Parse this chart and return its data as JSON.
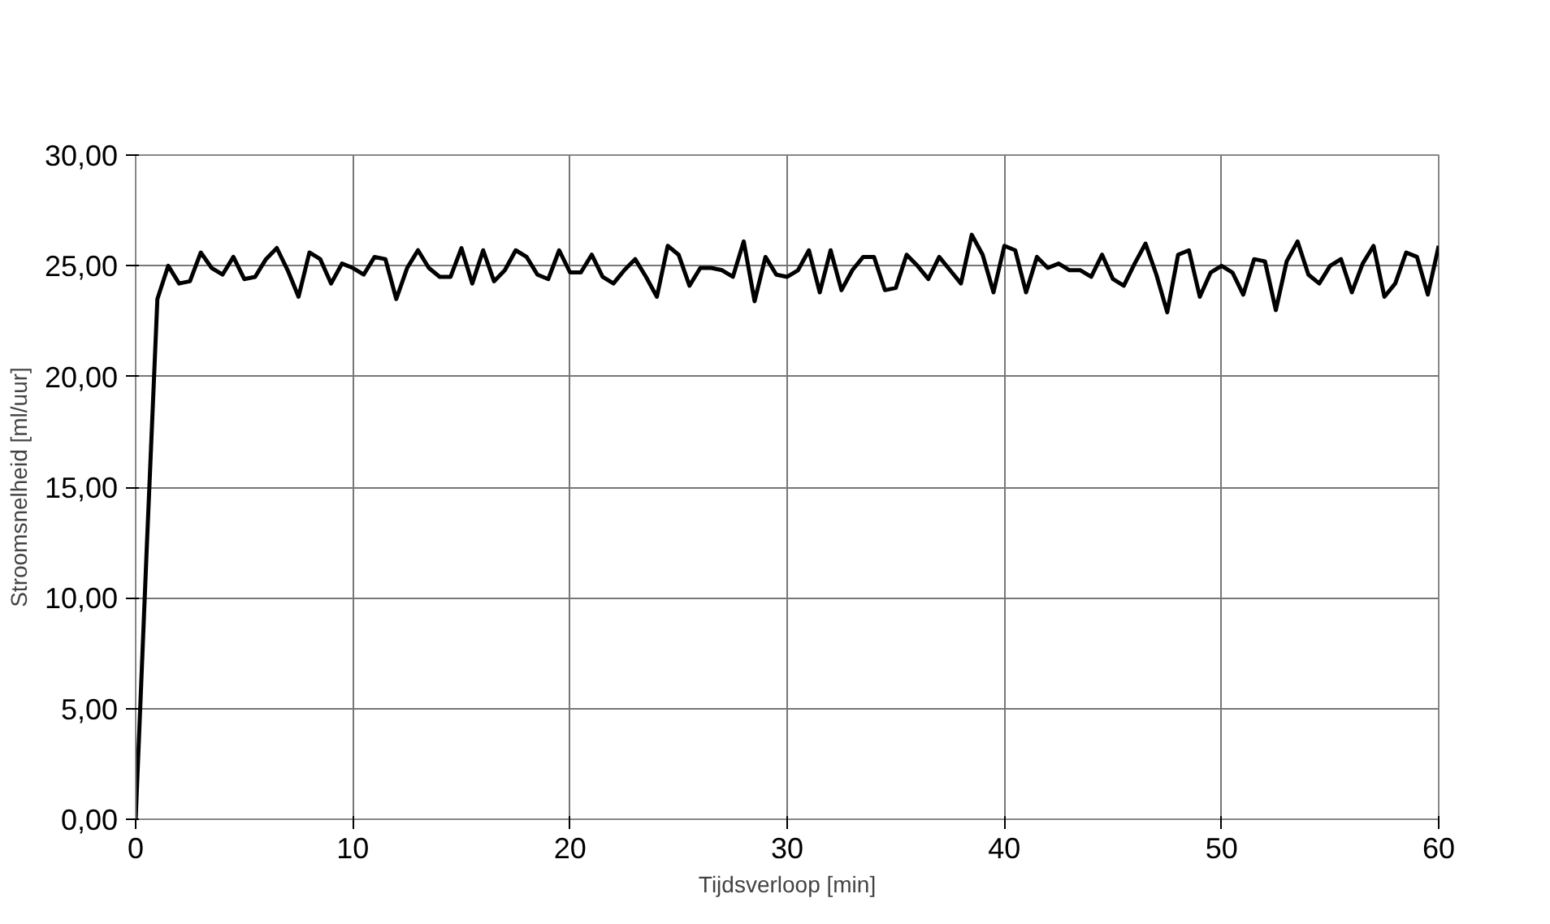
{
  "chart_data": {
    "type": "line",
    "xlabel": "Tijdsverloop [min]",
    "ylabel": "Stroomsnelheid [ml/uur]",
    "xlim": [
      0,
      60
    ],
    "ylim": [
      0,
      30
    ],
    "xticks": [
      0,
      10,
      20,
      30,
      40,
      50,
      60
    ],
    "yticks": [
      {
        "value": 0,
        "label": "0,00"
      },
      {
        "value": 5,
        "label": "5,00"
      },
      {
        "value": 10,
        "label": "10,00"
      },
      {
        "value": 15,
        "label": "15,00"
      },
      {
        "value": 20,
        "label": "20,00"
      },
      {
        "value": 25,
        "label": "25,00"
      },
      {
        "value": 30,
        "label": "30,00"
      }
    ],
    "grid": true,
    "marker": "none",
    "line_style": "solid",
    "x": [
      0,
      0.5,
      1,
      1.5,
      2,
      2.5,
      3,
      3.5,
      4,
      4.5,
      5,
      5.5,
      6,
      6.5,
      7,
      7.5,
      8,
      8.5,
      9,
      9.5,
      10,
      10.5,
      11,
      11.5,
      12,
      12.5,
      13,
      13.5,
      14,
      14.5,
      15,
      15.5,
      16,
      16.5,
      17,
      17.5,
      18,
      18.5,
      19,
      19.5,
      20,
      20.5,
      21,
      21.5,
      22,
      22.5,
      23,
      23.5,
      24,
      24.5,
      25,
      25.5,
      26,
      26.5,
      27,
      27.5,
      28,
      28.5,
      29,
      29.5,
      30,
      30.5,
      31,
      31.5,
      32,
      32.5,
      33,
      33.5,
      34,
      34.5,
      35,
      35.5,
      36,
      36.5,
      37,
      37.5,
      38,
      38.5,
      39,
      39.5,
      40,
      40.5,
      41,
      41.5,
      42,
      42.5,
      43,
      43.5,
      44,
      44.5,
      45,
      45.5,
      46,
      46.5,
      47,
      47.5,
      48,
      48.5,
      49,
      49.5,
      50,
      50.5,
      51,
      51.5,
      52,
      52.5,
      53,
      53.5,
      54,
      54.5,
      55,
      55.5,
      56,
      56.5,
      57,
      57.5,
      58,
      58.5,
      59,
      59.5,
      60
    ],
    "series": [
      {
        "color": "#000000",
        "values": [
          0,
          12,
          23.5,
          25,
          24.2,
          24.3,
          25.6,
          24.9,
          24.6,
          25.4,
          24.4,
          24.5,
          25.3,
          25.8,
          24.8,
          23.6,
          25.6,
          25.3,
          24.2,
          25.1,
          24.9,
          24.6,
          25.4,
          25.3,
          23.5,
          24.9,
          25.7,
          24.9,
          24.5,
          24.5,
          25.8,
          24.2,
          25.7,
          24.3,
          24.8,
          25.7,
          25.4,
          24.6,
          24.4,
          25.7,
          24.7,
          24.7,
          25.5,
          24.5,
          24.2,
          24.8,
          25.3,
          24.5,
          23.6,
          25.9,
          25.5,
          24.1,
          24.9,
          24.9,
          24.8,
          24.5,
          26.1,
          23.4,
          25.4,
          24.6,
          24.5,
          24.8,
          25.7,
          23.8,
          25.7,
          23.9,
          24.8,
          25.4,
          25.4,
          23.9,
          24.0,
          25.5,
          25.0,
          24.4,
          25.4,
          24.8,
          24.2,
          26.4,
          25.5,
          23.8,
          25.9,
          25.7,
          23.8,
          25.4,
          24.9,
          25.1,
          24.8,
          24.8,
          24.5,
          25.5,
          24.4,
          24.1,
          25.1,
          26.0,
          24.6,
          22.9,
          25.5,
          25.7,
          23.6,
          24.7,
          25.0,
          24.7,
          23.7,
          25.3,
          25.2,
          23.0,
          25.2,
          26.1,
          24.6,
          24.2,
          25.0,
          25.3,
          23.8,
          25.1,
          25.9,
          23.6,
          24.2,
          25.6,
          25.4,
          23.7,
          25.9
        ]
      }
    ]
  }
}
